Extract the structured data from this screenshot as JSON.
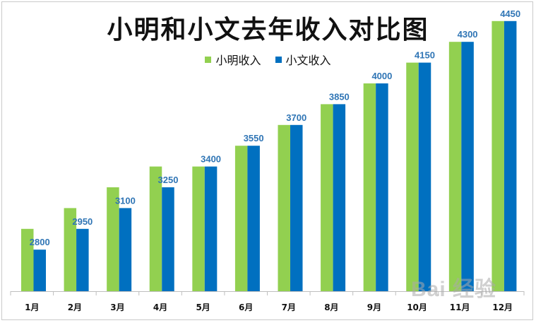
{
  "chart_data": {
    "type": "bar",
    "title": "小明和小文去年收入对比图",
    "categories": [
      "1月",
      "2月",
      "3月",
      "4月",
      "5月",
      "6月",
      "7月",
      "8月",
      "9月",
      "10月",
      "11月",
      "12月"
    ],
    "series": [
      {
        "name": "小明收入",
        "color": "#92d050",
        "values": [
          2950,
          3100,
          3250,
          3400,
          3400,
          3550,
          3700,
          3850,
          4000,
          4150,
          4300,
          4450
        ]
      },
      {
        "name": "小文收入",
        "color": "#0070c0",
        "values": [
          2800,
          2950,
          3100,
          3250,
          3400,
          3550,
          3700,
          3850,
          4000,
          4150,
          4300,
          4450
        ],
        "labels_shown": true
      }
    ],
    "ylim": [
      2500,
      4750
    ],
    "grid": false,
    "legend_position": "top",
    "data_label_color": "#2f75b5"
  },
  "watermark": {
    "text": "Bai 经验"
  }
}
